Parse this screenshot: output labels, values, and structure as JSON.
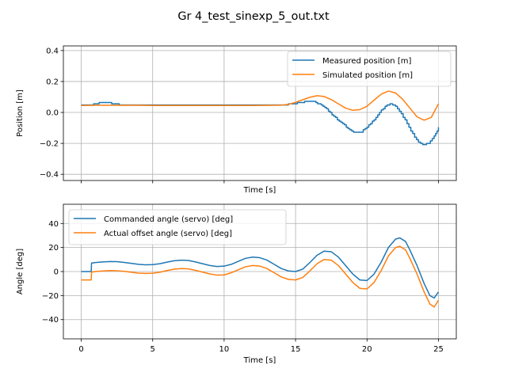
{
  "title": "Gr 4_test_sinexp_5_out.txt",
  "colors": {
    "blue": "#1f77b4",
    "orange": "#ff7f0e",
    "grid": "#b0b0b0"
  },
  "chart_data": [
    {
      "type": "line",
      "xlabel": "Time [s]",
      "ylabel": "Position [m]",
      "xlim": [
        -1.25,
        26.25
      ],
      "ylim": [
        -0.44,
        0.43
      ],
      "xticks": [
        0,
        5,
        10,
        15,
        20,
        25
      ],
      "xtick_labels_visible": false,
      "yticks": [
        -0.4,
        -0.2,
        0.0,
        0.2,
        0.4
      ],
      "ytick_labels": [
        "−0.4",
        "−0.2",
        "0.0",
        "0.2",
        "0.4"
      ],
      "grid": true,
      "legend_position": "top-right",
      "series": [
        {
          "name": "Measured position [m]",
          "color": "#1f77b4",
          "step": true,
          "points": [
            [
              0,
              0.046
            ],
            [
              0.6,
              0.048
            ],
            [
              1,
              0.058
            ],
            [
              1.5,
              0.064
            ],
            [
              2,
              0.062
            ],
            [
              2.4,
              0.054
            ],
            [
              2.8,
              0.048
            ],
            [
              3.5,
              0.051
            ],
            [
              4.2,
              0.05
            ],
            [
              4.8,
              0.047
            ],
            [
              6,
              0.046
            ],
            [
              8,
              0.046
            ],
            [
              10,
              0.046
            ],
            [
              12,
              0.046
            ],
            [
              14,
              0.047
            ],
            [
              14.5,
              0.052
            ],
            [
              15,
              0.058
            ],
            [
              15.5,
              0.066
            ],
            [
              15.9,
              0.072
            ],
            [
              16.3,
              0.068
            ],
            [
              16.8,
              0.05
            ],
            [
              17.3,
              0.01
            ],
            [
              17.8,
              -0.035
            ],
            [
              18.3,
              -0.075
            ],
            [
              18.8,
              -0.11
            ],
            [
              19.2,
              -0.132
            ],
            [
              19.6,
              -0.125
            ],
            [
              20.0,
              -0.095
            ],
            [
              20.5,
              -0.045
            ],
            [
              21.0,
              0.015
            ],
            [
              21.4,
              0.048
            ],
            [
              21.7,
              0.054
            ],
            [
              22.0,
              0.042
            ],
            [
              22.4,
              -0.005
            ],
            [
              22.8,
              -0.075
            ],
            [
              23.2,
              -0.14
            ],
            [
              23.6,
              -0.195
            ],
            [
              23.9,
              -0.212
            ],
            [
              24.3,
              -0.2
            ],
            [
              24.7,
              -0.15
            ],
            [
              25,
              -0.1
            ]
          ]
        },
        {
          "name": "Simulated position [m]",
          "color": "#ff7f0e",
          "step": false,
          "points": [
            [
              0,
              0.045
            ],
            [
              1,
              0.046
            ],
            [
              2,
              0.046
            ],
            [
              3,
              0.046
            ],
            [
              4,
              0.046
            ],
            [
              5,
              0.045
            ],
            [
              8,
              0.045
            ],
            [
              10,
              0.045
            ],
            [
              12,
              0.045
            ],
            [
              14,
              0.047
            ],
            [
              14.5,
              0.052
            ],
            [
              15,
              0.065
            ],
            [
              15.5,
              0.082
            ],
            [
              16,
              0.098
            ],
            [
              16.5,
              0.108
            ],
            [
              17,
              0.103
            ],
            [
              17.5,
              0.083
            ],
            [
              18,
              0.055
            ],
            [
              18.5,
              0.028
            ],
            [
              19,
              0.014
            ],
            [
              19.5,
              0.018
            ],
            [
              20,
              0.04
            ],
            [
              20.5,
              0.08
            ],
            [
              21,
              0.118
            ],
            [
              21.5,
              0.138
            ],
            [
              22,
              0.126
            ],
            [
              22.5,
              0.085
            ],
            [
              23,
              0.028
            ],
            [
              23.5,
              -0.028
            ],
            [
              24,
              -0.05
            ],
            [
              24.5,
              -0.032
            ],
            [
              25,
              0.055
            ]
          ]
        }
      ]
    },
    {
      "type": "line",
      "xlabel": "Time [s]",
      "ylabel": "Angle [deg]",
      "xlim": [
        -1.25,
        26.25
      ],
      "ylim": [
        -56,
        56
      ],
      "xticks": [
        0,
        5,
        10,
        15,
        20,
        25
      ],
      "xtick_labels": [
        "0",
        "5",
        "10",
        "15",
        "20",
        "25"
      ],
      "yticks": [
        -40,
        -20,
        0,
        20,
        40
      ],
      "ytick_labels": [
        "−40",
        "−20",
        "0",
        "20",
        "40"
      ],
      "grid": true,
      "legend_position": "top-left",
      "series": [
        {
          "name": "Commanded angle (servo) [deg]",
          "color": "#1f77b4",
          "step": false,
          "points": [
            [
              0,
              0
            ],
            [
              0.7,
              0
            ],
            [
              0.72,
              7
            ],
            [
              1,
              7.5
            ],
            [
              1.5,
              8
            ],
            [
              2,
              8.3
            ],
            [
              2.5,
              8.2
            ],
            [
              3,
              7.6
            ],
            [
              3.5,
              6.8
            ],
            [
              4,
              6.0
            ],
            [
              4.5,
              5.6
            ],
            [
              5,
              5.8
            ],
            [
              5.5,
              6.5
            ],
            [
              6,
              7.8
            ],
            [
              6.5,
              9.0
            ],
            [
              7,
              9.5
            ],
            [
              7.5,
              9.2
            ],
            [
              8,
              8.0
            ],
            [
              8.5,
              6.5
            ],
            [
              9,
              5.0
            ],
            [
              9.5,
              4.2
            ],
            [
              10,
              4.5
            ],
            [
              10.5,
              6.0
            ],
            [
              11,
              8.5
            ],
            [
              11.5,
              11.0
            ],
            [
              12,
              12.0
            ],
            [
              12.5,
              11.5
            ],
            [
              13,
              9.5
            ],
            [
              13.5,
              6.0
            ],
            [
              14,
              2.5
            ],
            [
              14.5,
              0.5
            ],
            [
              15,
              0.0
            ],
            [
              15.5,
              2.0
            ],
            [
              16,
              7.5
            ],
            [
              16.5,
              13.5
            ],
            [
              17,
              17.0
            ],
            [
              17.5,
              16.5
            ],
            [
              18,
              12.0
            ],
            [
              18.5,
              5.0
            ],
            [
              19,
              -2.0
            ],
            [
              19.5,
              -7.0
            ],
            [
              20,
              -7.5
            ],
            [
              20.5,
              -2.0
            ],
            [
              21,
              8.0
            ],
            [
              21.5,
              20.0
            ],
            [
              22,
              27.0
            ],
            [
              22.3,
              28.0
            ],
            [
              22.7,
              25.0
            ],
            [
              23,
              18.0
            ],
            [
              23.5,
              5.0
            ],
            [
              24,
              -10.0
            ],
            [
              24.4,
              -20.0
            ],
            [
              24.7,
              -22.0
            ],
            [
              25,
              -17.0
            ]
          ]
        },
        {
          "name": "Actual offset angle (servo) [deg]",
          "color": "#ff7f0e",
          "step": false,
          "points": [
            [
              0,
              -7
            ],
            [
              0.7,
              -7
            ],
            [
              0.72,
              -0.5
            ],
            [
              1,
              0.0
            ],
            [
              1.5,
              0.5
            ],
            [
              2,
              0.8
            ],
            [
              2.5,
              0.7
            ],
            [
              3,
              0.2
            ],
            [
              3.5,
              -0.6
            ],
            [
              4,
              -1.3
            ],
            [
              4.5,
              -1.6
            ],
            [
              5,
              -1.4
            ],
            [
              5.5,
              -0.6
            ],
            [
              6,
              0.8
            ],
            [
              6.5,
              2.0
            ],
            [
              7,
              2.5
            ],
            [
              7.5,
              2.2
            ],
            [
              8,
              1.0
            ],
            [
              8.5,
              -0.5
            ],
            [
              9,
              -2.0
            ],
            [
              9.5,
              -3.0
            ],
            [
              10,
              -2.8
            ],
            [
              10.5,
              -1.0
            ],
            [
              11,
              1.5
            ],
            [
              11.5,
              4.0
            ],
            [
              12,
              5.0
            ],
            [
              12.5,
              4.5
            ],
            [
              13,
              2.5
            ],
            [
              13.5,
              -1.0
            ],
            [
              14,
              -4.5
            ],
            [
              14.5,
              -6.5
            ],
            [
              15,
              -7.0
            ],
            [
              15.5,
              -5.0
            ],
            [
              16,
              0.5
            ],
            [
              16.5,
              6.5
            ],
            [
              17,
              10.0
            ],
            [
              17.5,
              9.5
            ],
            [
              18,
              5.0
            ],
            [
              18.5,
              -2.0
            ],
            [
              19,
              -9.0
            ],
            [
              19.5,
              -14.0
            ],
            [
              20,
              -14.5
            ],
            [
              20.5,
              -9.0
            ],
            [
              21,
              1.0
            ],
            [
              21.5,
              13.0
            ],
            [
              22,
              20.0
            ],
            [
              22.3,
              21.0
            ],
            [
              22.7,
              18.0
            ],
            [
              23,
              11.0
            ],
            [
              23.5,
              -2.0
            ],
            [
              24,
              -17.0
            ],
            [
              24.4,
              -27.0
            ],
            [
              24.7,
              -29.5
            ],
            [
              25,
              -24.0
            ]
          ]
        }
      ]
    }
  ]
}
